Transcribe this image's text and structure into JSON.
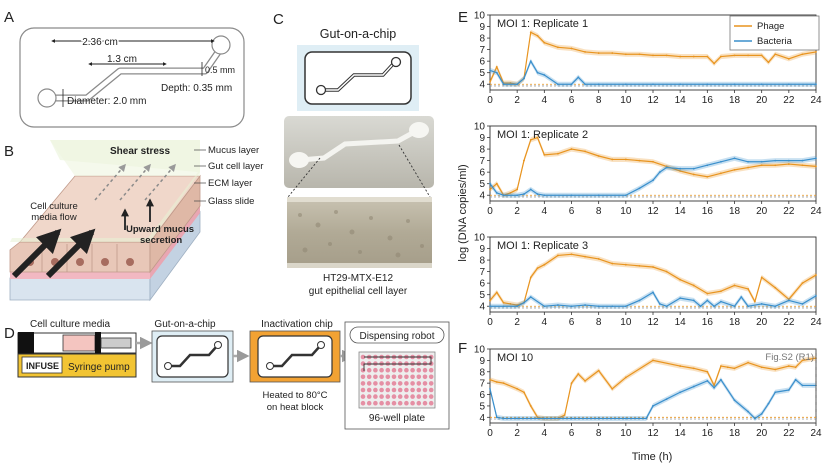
{
  "panel_a": {
    "letter": "A",
    "length_long": "2.36 cm",
    "length_short": "1.3 cm",
    "width": "0.5 mm",
    "depth": "Depth: 0.35 mm",
    "diameter": "Diameter: 2.0 mm"
  },
  "panel_b": {
    "letter": "B",
    "layers": [
      "Mucus layer",
      "Gut cell layer",
      "ECM layer",
      "Glass slide"
    ],
    "shear": "Shear stress",
    "flow_line1": "Cell culture",
    "flow_line2": "media flow",
    "mucus_line1": "Upward mucus",
    "mucus_line2": "secretion"
  },
  "panel_c": {
    "letter": "C",
    "title": "Gut-on-a-chip",
    "caption_line1": "HT29-MTX-E12",
    "caption_line2": "gut epithelial cell layer"
  },
  "panel_d": {
    "letter": "D",
    "media": "Cell culture media",
    "infuse": "INFUSE",
    "syringe_pump": "Syringe pump",
    "gut_chip": "Gut-on-a-chip",
    "inactivation_chip": "Inactivation chip",
    "heated_line1": "Heated to 80°C",
    "heated_line2": "on heat block",
    "robot": "Dispensing robot",
    "plate": "96-well plate"
  },
  "panel_e_letter": "E",
  "panel_f_letter": "F",
  "y_axis_label": "log (DNA copies/ml)",
  "x_axis_label": "Time (h)",
  "colors": {
    "phage": "#E8941F",
    "bacteria": "#3A8FCC"
  },
  "chart_data": [
    {
      "type": "line",
      "title": "MOI 1: Replicate 1",
      "xlabel": "",
      "ylabel": "log (DNA copies/ml)",
      "xlim": [
        0,
        24
      ],
      "ylim": [
        3.5,
        10
      ],
      "xticks": [
        0,
        2,
        4,
        6,
        8,
        10,
        12,
        14,
        16,
        18,
        20,
        22,
        24
      ],
      "yticks": [
        4,
        5,
        6,
        7,
        8,
        9,
        10
      ],
      "legend": [
        "Phage",
        "Bacteria"
      ],
      "series": [
        {
          "name": "Phage",
          "x": [
            0,
            0.5,
            1,
            1.5,
            2,
            2.5,
            3,
            3.5,
            4,
            5,
            6,
            7,
            8,
            9,
            10,
            11,
            12,
            13,
            14,
            15,
            16,
            16.5,
            17,
            18,
            19,
            20,
            20.5,
            21,
            22,
            23,
            24
          ],
          "y": [
            4.2,
            5.5,
            4.1,
            4.1,
            4.0,
            4.5,
            8.5,
            8.2,
            7.6,
            7.2,
            7.1,
            6.8,
            6.7,
            6.7,
            6.6,
            6.6,
            6.5,
            6.5,
            6.4,
            6.4,
            6.4,
            5.8,
            6.4,
            6.5,
            6.5,
            6.5,
            5.9,
            6.6,
            6.2,
            6.6,
            6.8
          ]
        },
        {
          "name": "Bacteria",
          "x": [
            0,
            0.5,
            1,
            2,
            2.5,
            3,
            3.5,
            4,
            5,
            6,
            6.5,
            7,
            8,
            10,
            12,
            14,
            16,
            18,
            20,
            22,
            24
          ],
          "y": [
            5.2,
            5.0,
            4.0,
            4.0,
            4.5,
            6.0,
            5.0,
            4.8,
            4.0,
            4.0,
            4.6,
            4.0,
            4.0,
            4.0,
            4.0,
            4.0,
            4.0,
            4.0,
            4.0,
            4.0,
            4.0
          ]
        }
      ]
    },
    {
      "type": "line",
      "title": "MOI 1: Replicate 2",
      "xlim": [
        0,
        24
      ],
      "ylim": [
        3.5,
        10
      ],
      "xticks": [
        0,
        2,
        4,
        6,
        8,
        10,
        12,
        14,
        16,
        18,
        20,
        22,
        24
      ],
      "yticks": [
        4,
        5,
        6,
        7,
        8,
        9,
        10
      ],
      "series": [
        {
          "name": "Phage",
          "x": [
            0,
            0.5,
            1,
            1.5,
            2,
            2.5,
            3,
            3.5,
            4,
            5,
            6,
            7,
            8,
            9,
            10,
            11,
            12,
            13,
            14,
            15,
            16,
            17,
            18,
            19,
            20,
            21,
            22,
            23,
            24
          ],
          "y": [
            4.5,
            5.0,
            4.0,
            4.2,
            4.5,
            7.0,
            8.8,
            9.0,
            7.5,
            7.6,
            8.0,
            7.8,
            7.4,
            7.1,
            7.1,
            7.0,
            6.9,
            6.5,
            6.1,
            5.8,
            5.6,
            5.9,
            6.2,
            6.4,
            6.6,
            6.6,
            6.7,
            6.6,
            6.5
          ]
        },
        {
          "name": "Bacteria",
          "x": [
            0,
            0.5,
            1,
            2,
            2.5,
            3,
            3.5,
            4,
            6,
            8,
            10,
            11,
            12,
            12.5,
            13,
            14,
            15,
            16,
            17,
            18,
            19,
            20,
            21,
            22,
            23,
            24
          ],
          "y": [
            5.0,
            4.2,
            4.0,
            4.0,
            4.1,
            4.5,
            4.1,
            4.0,
            4.0,
            4.0,
            4.0,
            4.6,
            5.3,
            6.0,
            6.4,
            6.3,
            6.3,
            6.6,
            6.9,
            7.2,
            6.9,
            6.9,
            7.0,
            7.0,
            7.0,
            7.2
          ]
        }
      ]
    },
    {
      "type": "line",
      "title": "MOI 1: Replicate 3",
      "xlim": [
        0,
        24
      ],
      "ylim": [
        3.5,
        10
      ],
      "xticks": [
        0,
        2,
        4,
        6,
        8,
        10,
        12,
        14,
        16,
        18,
        20,
        22,
        24
      ],
      "yticks": [
        4,
        5,
        6,
        7,
        8,
        9,
        10
      ],
      "series": [
        {
          "name": "Phage",
          "x": [
            0,
            0.5,
            1,
            1.5,
            2,
            2.5,
            3,
            3.5,
            4,
            5,
            6,
            7,
            8,
            9,
            10,
            11,
            12,
            13,
            14,
            15,
            16,
            17,
            18,
            19,
            19.5,
            20,
            21,
            22,
            23,
            24
          ],
          "y": [
            4.5,
            5.2,
            4.3,
            4.2,
            4.1,
            4.3,
            6.5,
            7.3,
            7.6,
            8.4,
            8.5,
            8.3,
            8.1,
            7.7,
            7.6,
            7.5,
            7.4,
            7.0,
            6.3,
            5.8,
            5.1,
            5.3,
            5.8,
            5.5,
            4.4,
            6.5,
            5.6,
            4.6,
            6.0,
            6.7
          ]
        },
        {
          "name": "Bacteria",
          "x": [
            0,
            1,
            2,
            2.5,
            3,
            4,
            5,
            6,
            7,
            8,
            9,
            10,
            11,
            12,
            12.5,
            13,
            14,
            15,
            15.5,
            16,
            16.5,
            17,
            18,
            18.5,
            19,
            20,
            21,
            22,
            23,
            24
          ],
          "y": [
            4.0,
            4.0,
            4.0,
            4.3,
            4.8,
            4.0,
            4.1,
            4.0,
            4.1,
            4.0,
            4.0,
            4.0,
            4.5,
            5.2,
            4.2,
            4.0,
            4.7,
            4.5,
            4.0,
            4.5,
            4.0,
            4.4,
            4.0,
            4.8,
            4.0,
            4.2,
            4.0,
            4.5,
            4.2,
            4.9
          ]
        }
      ]
    },
    {
      "type": "line",
      "title": "MOI 10",
      "annotation": "Fig.S2 (R1)",
      "xlabel": "Time (h)",
      "xlim": [
        0,
        24
      ],
      "ylim": [
        3.5,
        10
      ],
      "xticks": [
        0,
        2,
        4,
        6,
        8,
        10,
        12,
        14,
        16,
        18,
        20,
        22,
        24
      ],
      "yticks": [
        4,
        5,
        6,
        7,
        8,
        9,
        10
      ],
      "series": [
        {
          "name": "Phage",
          "x": [
            0,
            0.5,
            1,
            2,
            2.5,
            3,
            3.5,
            4,
            5,
            5.5,
            6,
            6.5,
            7,
            8,
            9,
            10,
            12,
            14,
            15,
            16,
            16.5,
            17,
            17.5,
            18,
            19,
            20,
            21,
            22,
            22.5,
            23,
            24
          ],
          "y": [
            7.3,
            7.1,
            7.0,
            6.5,
            6.2,
            5.0,
            4.0,
            3.9,
            3.9,
            4.2,
            7.0,
            7.8,
            7.2,
            8.1,
            6.5,
            7.5,
            9.0,
            8.5,
            8.3,
            8.0,
            6.8,
            8.5,
            8.4,
            8.3,
            8.8,
            8.4,
            8.2,
            8.5,
            8.4,
            9.0,
            9.2
          ]
        },
        {
          "name": "Bacteria",
          "x": [
            0,
            0.5,
            1,
            2,
            4,
            6,
            8,
            10,
            11.5,
            12,
            13,
            14,
            15,
            16,
            16.5,
            17,
            18,
            19,
            19.5,
            20,
            20.5,
            21,
            22,
            22.5,
            23,
            24
          ],
          "y": [
            6.5,
            4.0,
            3.9,
            3.9,
            3.9,
            3.9,
            3.9,
            3.9,
            3.9,
            5.0,
            5.6,
            6.2,
            6.7,
            7.2,
            6.6,
            7.3,
            5.5,
            4.5,
            3.9,
            4.3,
            5.2,
            6.2,
            6.4,
            7.3,
            6.8,
            6.8
          ]
        }
      ]
    }
  ]
}
